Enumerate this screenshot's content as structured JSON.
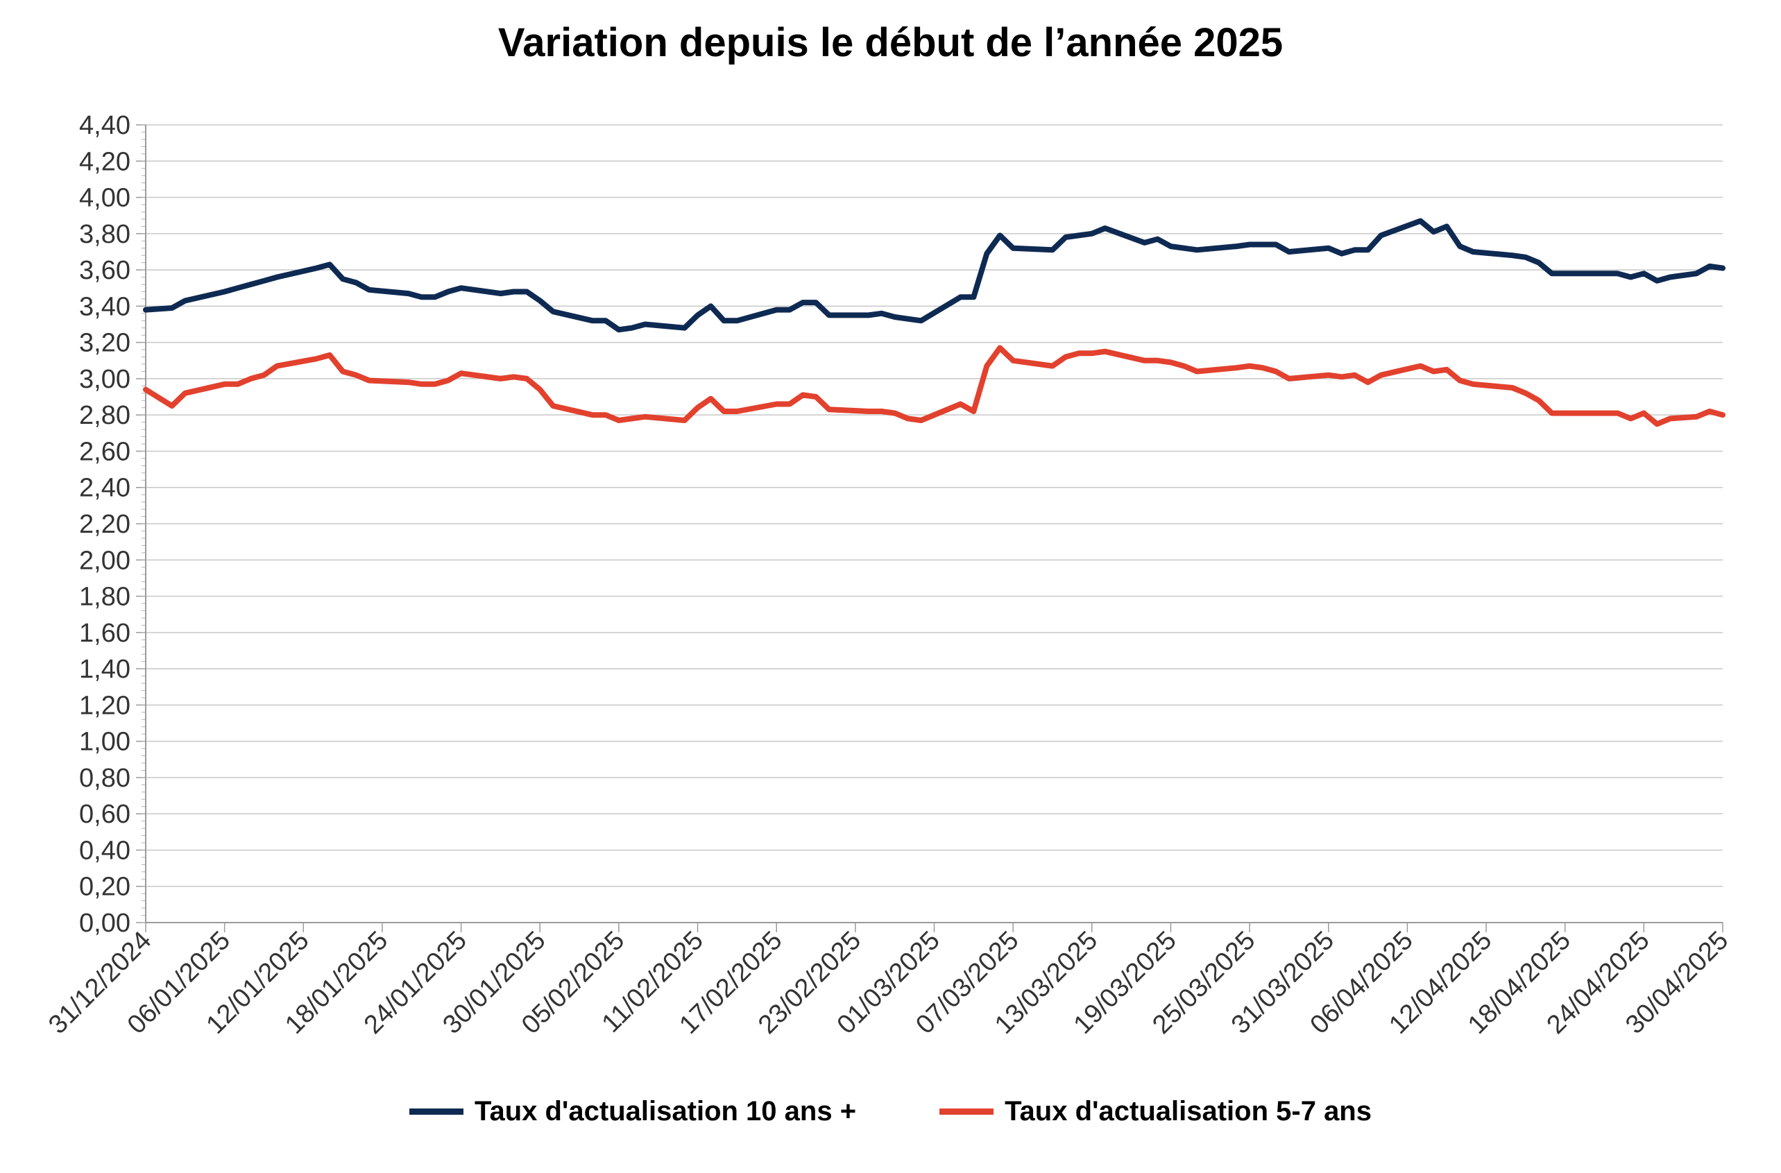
{
  "chart_data": {
    "type": "line",
    "title": "Variation depuis le début de l’année 2025",
    "xlabel": "",
    "ylabel": "",
    "x_start": "31/12/2024",
    "x_end": "30/04/2025",
    "ylim": [
      0,
      4.4
    ],
    "yticks": [
      "0,00",
      "0,20",
      "0,40",
      "0,60",
      "0,80",
      "1,00",
      "1,20",
      "1,40",
      "1,60",
      "1,80",
      "2,00",
      "2,20",
      "2,40",
      "2,60",
      "2,80",
      "3,00",
      "3,20",
      "3,40",
      "3,60",
      "3,80",
      "4,00",
      "4,20",
      "4,40"
    ],
    "xticks": [
      "31/12/2024",
      "06/01/2025",
      "12/01/2025",
      "18/01/2025",
      "24/01/2025",
      "30/01/2025",
      "05/02/2025",
      "11/02/2025",
      "17/02/2025",
      "23/02/2025",
      "01/03/2025",
      "07/03/2025",
      "13/03/2025",
      "19/03/2025",
      "25/03/2025",
      "31/03/2025",
      "06/04/2025",
      "12/04/2025",
      "18/04/2025",
      "24/04/2025",
      "30/04/2025"
    ],
    "grid": true,
    "legend_position": "bottom",
    "series": [
      {
        "name": "Taux d'actualisation 10 ans +",
        "color": "#0e2a52",
        "points": [
          [
            "31/12/2024",
            3.38
          ],
          [
            "02/01/2025",
            3.39
          ],
          [
            "03/01/2025",
            3.43
          ],
          [
            "06/01/2025",
            3.48
          ],
          [
            "07/01/2025",
            3.5
          ],
          [
            "08/01/2025",
            3.52
          ],
          [
            "09/01/2025",
            3.54
          ],
          [
            "10/01/2025",
            3.56
          ],
          [
            "13/01/2025",
            3.61
          ],
          [
            "14/01/2025",
            3.63
          ],
          [
            "15/01/2025",
            3.55
          ],
          [
            "16/01/2025",
            3.53
          ],
          [
            "17/01/2025",
            3.49
          ],
          [
            "20/01/2025",
            3.47
          ],
          [
            "21/01/2025",
            3.45
          ],
          [
            "22/01/2025",
            3.45
          ],
          [
            "23/01/2025",
            3.48
          ],
          [
            "24/01/2025",
            3.5
          ],
          [
            "27/01/2025",
            3.47
          ],
          [
            "28/01/2025",
            3.48
          ],
          [
            "29/01/2025",
            3.48
          ],
          [
            "30/01/2025",
            3.43
          ],
          [
            "31/01/2025",
            3.37
          ],
          [
            "03/02/2025",
            3.32
          ],
          [
            "04/02/2025",
            3.32
          ],
          [
            "05/02/2025",
            3.27
          ],
          [
            "06/02/2025",
            3.28
          ],
          [
            "07/02/2025",
            3.3
          ],
          [
            "10/02/2025",
            3.28
          ],
          [
            "11/02/2025",
            3.35
          ],
          [
            "12/02/2025",
            3.4
          ],
          [
            "13/02/2025",
            3.32
          ],
          [
            "14/02/2025",
            3.32
          ],
          [
            "17/02/2025",
            3.38
          ],
          [
            "18/02/2025",
            3.38
          ],
          [
            "19/02/2025",
            3.42
          ],
          [
            "20/02/2025",
            3.42
          ],
          [
            "21/02/2025",
            3.35
          ],
          [
            "24/02/2025",
            3.35
          ],
          [
            "25/02/2025",
            3.36
          ],
          [
            "26/02/2025",
            3.34
          ],
          [
            "27/02/2025",
            3.33
          ],
          [
            "28/02/2025",
            3.32
          ],
          [
            "03/03/2025",
            3.45
          ],
          [
            "04/03/2025",
            3.45
          ],
          [
            "05/03/2025",
            3.69
          ],
          [
            "06/03/2025",
            3.79
          ],
          [
            "07/03/2025",
            3.72
          ],
          [
            "10/03/2025",
            3.71
          ],
          [
            "11/03/2025",
            3.78
          ],
          [
            "12/03/2025",
            3.79
          ],
          [
            "13/03/2025",
            3.8
          ],
          [
            "14/03/2025",
            3.83
          ],
          [
            "17/03/2025",
            3.75
          ],
          [
            "18/03/2025",
            3.77
          ],
          [
            "19/03/2025",
            3.73
          ],
          [
            "20/03/2025",
            3.72
          ],
          [
            "21/03/2025",
            3.71
          ],
          [
            "24/03/2025",
            3.73
          ],
          [
            "25/03/2025",
            3.74
          ],
          [
            "26/03/2025",
            3.74
          ],
          [
            "27/03/2025",
            3.74
          ],
          [
            "28/03/2025",
            3.7
          ],
          [
            "31/03/2025",
            3.72
          ],
          [
            "01/04/2025",
            3.69
          ],
          [
            "02/04/2025",
            3.71
          ],
          [
            "03/04/2025",
            3.71
          ],
          [
            "04/04/2025",
            3.79
          ],
          [
            "07/04/2025",
            3.87
          ],
          [
            "08/04/2025",
            3.81
          ],
          [
            "09/04/2025",
            3.84
          ],
          [
            "10/04/2025",
            3.73
          ],
          [
            "11/04/2025",
            3.7
          ],
          [
            "14/04/2025",
            3.68
          ],
          [
            "15/04/2025",
            3.67
          ],
          [
            "16/04/2025",
            3.64
          ],
          [
            "17/04/2025",
            3.58
          ],
          [
            "22/04/2025",
            3.58
          ],
          [
            "23/04/2025",
            3.56
          ],
          [
            "24/04/2025",
            3.58
          ],
          [
            "25/04/2025",
            3.54
          ],
          [
            "26/04/2025",
            3.56
          ],
          [
            "28/04/2025",
            3.58
          ],
          [
            "29/04/2025",
            3.62
          ],
          [
            "30/04/2025",
            3.61
          ]
        ]
      },
      {
        "name": "Taux d'actualisation 5-7 ans",
        "color": "#e2412e",
        "points": [
          [
            "31/12/2024",
            2.94
          ],
          [
            "02/01/2025",
            2.85
          ],
          [
            "03/01/2025",
            2.92
          ],
          [
            "06/01/2025",
            2.97
          ],
          [
            "07/01/2025",
            2.97
          ],
          [
            "08/01/2025",
            3.0
          ],
          [
            "09/01/2025",
            3.02
          ],
          [
            "10/01/2025",
            3.07
          ],
          [
            "13/01/2025",
            3.11
          ],
          [
            "14/01/2025",
            3.13
          ],
          [
            "15/01/2025",
            3.04
          ],
          [
            "16/01/2025",
            3.02
          ],
          [
            "17/01/2025",
            2.99
          ],
          [
            "20/01/2025",
            2.98
          ],
          [
            "21/01/2025",
            2.97
          ],
          [
            "22/01/2025",
            2.97
          ],
          [
            "23/01/2025",
            2.99
          ],
          [
            "24/01/2025",
            3.03
          ],
          [
            "27/01/2025",
            3.0
          ],
          [
            "28/01/2025",
            3.01
          ],
          [
            "29/01/2025",
            3.0
          ],
          [
            "30/01/2025",
            2.94
          ],
          [
            "31/01/2025",
            2.85
          ],
          [
            "03/02/2025",
            2.8
          ],
          [
            "04/02/2025",
            2.8
          ],
          [
            "05/02/2025",
            2.77
          ],
          [
            "06/02/2025",
            2.78
          ],
          [
            "07/02/2025",
            2.79
          ],
          [
            "10/02/2025",
            2.77
          ],
          [
            "11/02/2025",
            2.84
          ],
          [
            "12/02/2025",
            2.89
          ],
          [
            "13/02/2025",
            2.82
          ],
          [
            "14/02/2025",
            2.82
          ],
          [
            "17/02/2025",
            2.86
          ],
          [
            "18/02/2025",
            2.86
          ],
          [
            "19/02/2025",
            2.91
          ],
          [
            "20/02/2025",
            2.9
          ],
          [
            "21/02/2025",
            2.83
          ],
          [
            "24/02/2025",
            2.82
          ],
          [
            "25/02/2025",
            2.82
          ],
          [
            "26/02/2025",
            2.81
          ],
          [
            "27/02/2025",
            2.78
          ],
          [
            "28/02/2025",
            2.77
          ],
          [
            "03/03/2025",
            2.86
          ],
          [
            "04/03/2025",
            2.82
          ],
          [
            "05/03/2025",
            3.07
          ],
          [
            "06/03/2025",
            3.17
          ],
          [
            "07/03/2025",
            3.1
          ],
          [
            "10/03/2025",
            3.07
          ],
          [
            "11/03/2025",
            3.12
          ],
          [
            "12/03/2025",
            3.14
          ],
          [
            "13/03/2025",
            3.14
          ],
          [
            "14/03/2025",
            3.15
          ],
          [
            "17/03/2025",
            3.1
          ],
          [
            "18/03/2025",
            3.1
          ],
          [
            "19/03/2025",
            3.09
          ],
          [
            "20/03/2025",
            3.07
          ],
          [
            "21/03/2025",
            3.04
          ],
          [
            "24/03/2025",
            3.06
          ],
          [
            "25/03/2025",
            3.07
          ],
          [
            "26/03/2025",
            3.06
          ],
          [
            "27/03/2025",
            3.04
          ],
          [
            "28/03/2025",
            3.0
          ],
          [
            "31/03/2025",
            3.02
          ],
          [
            "01/04/2025",
            3.01
          ],
          [
            "02/04/2025",
            3.02
          ],
          [
            "03/04/2025",
            2.98
          ],
          [
            "04/04/2025",
            3.02
          ],
          [
            "07/04/2025",
            3.07
          ],
          [
            "08/04/2025",
            3.04
          ],
          [
            "09/04/2025",
            3.05
          ],
          [
            "10/04/2025",
            2.99
          ],
          [
            "11/04/2025",
            2.97
          ],
          [
            "14/04/2025",
            2.95
          ],
          [
            "15/04/2025",
            2.92
          ],
          [
            "16/04/2025",
            2.88
          ],
          [
            "17/04/2025",
            2.81
          ],
          [
            "22/04/2025",
            2.81
          ],
          [
            "23/04/2025",
            2.78
          ],
          [
            "24/04/2025",
            2.81
          ],
          [
            "25/04/2025",
            2.75
          ],
          [
            "26/04/2025",
            2.78
          ],
          [
            "28/04/2025",
            2.79
          ],
          [
            "29/04/2025",
            2.82
          ],
          [
            "30/04/2025",
            2.8
          ]
        ]
      }
    ]
  }
}
